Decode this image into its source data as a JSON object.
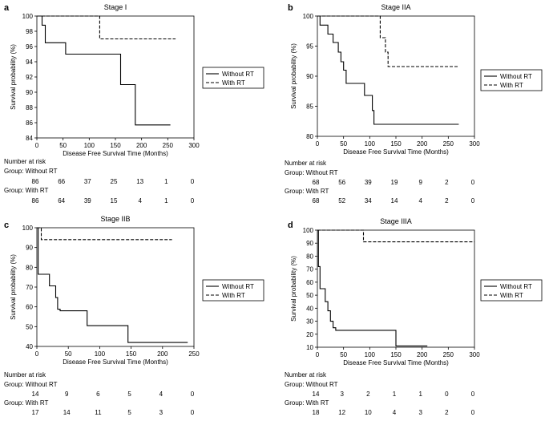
{
  "chart_data": [
    {
      "type": "line",
      "panel_label": "a",
      "title": "Stage I",
      "xlabel": "Disease Free Survival Time (Months)",
      "ylabel": "Survival probability (%)",
      "xlim": [
        0,
        300
      ],
      "ylim": [
        84,
        100
      ],
      "xticks": [
        0,
        50,
        100,
        150,
        200,
        250,
        300
      ],
      "yticks": [
        84,
        86,
        88,
        90,
        92,
        94,
        96,
        98,
        100
      ],
      "series": [
        {
          "name": "Without RT",
          "style": "solid",
          "x": [
            0,
            10,
            10,
            16,
            16,
            55,
            55,
            160,
            160,
            188,
            188,
            255
          ],
          "y": [
            100,
            100,
            98.8,
            98.8,
            96.5,
            96.5,
            95,
            95,
            91,
            91,
            85.7,
            85.7
          ]
        },
        {
          "name": "With RT",
          "style": "dashed",
          "x": [
            0,
            120,
            120,
            265
          ],
          "y": [
            100,
            100,
            97,
            97
          ]
        }
      ],
      "risk_table": {
        "heading": "Number at risk",
        "groups": [
          {
            "label": "Group: Without RT",
            "values": [
              "86",
              "66",
              "37",
              "25",
              "13",
              "1",
              "0"
            ]
          },
          {
            "label": "Group: With RT",
            "values": [
              "86",
              "64",
              "39",
              "15",
              "4",
              "1",
              "0"
            ]
          }
        ]
      }
    },
    {
      "type": "line",
      "panel_label": "b",
      "title": "Stage IIA",
      "xlabel": "Disease Free Survival Time (Months)",
      "ylabel": "Survival probability (%)",
      "xlim": [
        0,
        300
      ],
      "ylim": [
        80,
        100
      ],
      "xticks": [
        0,
        50,
        100,
        150,
        200,
        250,
        300
      ],
      "yticks": [
        80,
        85,
        90,
        95,
        100
      ],
      "series": [
        {
          "name": "Without RT",
          "style": "solid",
          "x": [
            0,
            5,
            5,
            20,
            20,
            30,
            30,
            40,
            40,
            45,
            45,
            50,
            50,
            55,
            55,
            90,
            90,
            105,
            105,
            108,
            108,
            270
          ],
          "y": [
            100,
            100,
            98.5,
            98.5,
            97,
            97,
            95.6,
            95.6,
            94,
            94,
            92.4,
            92.4,
            91,
            91,
            88.8,
            88.8,
            86.8,
            86.8,
            84.3,
            84.3,
            82,
            82
          ]
        },
        {
          "name": "With RT",
          "style": "dashed",
          "x": [
            0,
            120,
            120,
            130,
            130,
            135,
            135,
            270
          ],
          "y": [
            100,
            100,
            96.4,
            96.4,
            94,
            94,
            91.6,
            91.6
          ]
        }
      ],
      "risk_table": {
        "heading": "Number at risk",
        "groups": [
          {
            "label": "Group: Without RT",
            "values": [
              "68",
              "56",
              "39",
              "19",
              "9",
              "2",
              "0"
            ]
          },
          {
            "label": "Group: With RT",
            "values": [
              "68",
              "52",
              "34",
              "14",
              "4",
              "2",
              "0"
            ]
          }
        ]
      }
    },
    {
      "type": "line",
      "panel_label": "c",
      "title": "Stage IIB",
      "xlabel": "Disease Free Survival Time (Months)",
      "ylabel": "Survival probability (%)",
      "xlim": [
        0,
        250
      ],
      "ylim": [
        40,
        100
      ],
      "xticks": [
        0,
        50,
        100,
        150,
        200,
        250
      ],
      "yticks": [
        40,
        50,
        60,
        70,
        80,
        90,
        100
      ],
      "series": [
        {
          "name": "Without RT",
          "style": "solid",
          "x": [
            0,
            2,
            2,
            20,
            20,
            30,
            30,
            33,
            33,
            37,
            37,
            80,
            80,
            145,
            145,
            240
          ],
          "y": [
            100,
            100,
            76.5,
            76.5,
            70.6,
            70.6,
            64.7,
            64.7,
            58.8,
            58.8,
            58,
            58,
            50.5,
            50.5,
            42,
            42
          ]
        },
        {
          "name": "With RT",
          "style": "dashed",
          "x": [
            0,
            7,
            7,
            215
          ],
          "y": [
            100,
            100,
            94,
            94
          ]
        }
      ],
      "risk_table": {
        "heading": "Number at risk",
        "groups": [
          {
            "label": "Group: Without RT",
            "values": [
              "14",
              "9",
              "6",
              "5",
              "4",
              "0"
            ]
          },
          {
            "label": "Group: With RT",
            "values": [
              "17",
              "14",
              "11",
              "5",
              "3",
              "0"
            ]
          }
        ]
      }
    },
    {
      "type": "line",
      "panel_label": "d",
      "title": "Stage IIIA",
      "xlabel": "Disease Free Survival Time (Months)",
      "ylabel": "Survival probability (%)",
      "xlim": [
        0,
        300
      ],
      "ylim": [
        10,
        100
      ],
      "xticks": [
        0,
        50,
        100,
        150,
        200,
        250,
        300
      ],
      "yticks": [
        10,
        20,
        30,
        40,
        50,
        60,
        70,
        80,
        90,
        100
      ],
      "series": [
        {
          "name": "Without RT",
          "style": "solid",
          "x": [
            0,
            2,
            2,
            5,
            5,
            15,
            15,
            20,
            20,
            25,
            25,
            30,
            30,
            35,
            35,
            150,
            150,
            210
          ],
          "y": [
            100,
            100,
            72,
            72,
            55,
            55,
            45,
            45,
            38,
            38,
            30,
            30,
            25,
            25,
            23,
            23,
            11,
            11
          ]
        },
        {
          "name": "With RT",
          "style": "dashed",
          "x": [
            0,
            88,
            88,
            300
          ],
          "y": [
            100,
            100,
            91,
            91
          ]
        }
      ],
      "risk_table": {
        "heading": "Number at risk",
        "groups": [
          {
            "label": "Group: Without RT",
            "values": [
              "14",
              "3",
              "2",
              "1",
              "1",
              "0",
              "0"
            ]
          },
          {
            "label": "Group: With RT",
            "values": [
              "18",
              "12",
              "10",
              "4",
              "3",
              "2",
              "0"
            ]
          }
        ]
      }
    }
  ]
}
